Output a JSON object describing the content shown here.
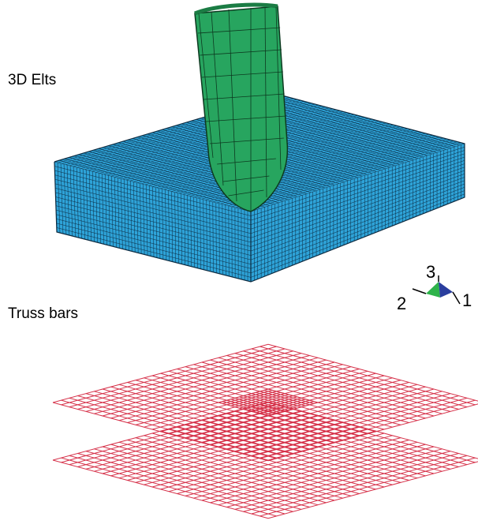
{
  "labels": {
    "solid_elements": "3D Elts",
    "truss_bars": "Truss bars"
  },
  "triad": {
    "axis1": "1",
    "axis2": "2",
    "axis3": "3"
  },
  "colors": {
    "solid_block": "#2ea3d8",
    "solid_block_dark": "#1e83b8",
    "mesh_line": "#0b2a40",
    "projectile": "#27a55f",
    "projectile_dark": "#1b7c44",
    "truss": "#d6324a",
    "triad_green": "#2eb34a",
    "triad_blue": "#2a3e9e"
  }
}
